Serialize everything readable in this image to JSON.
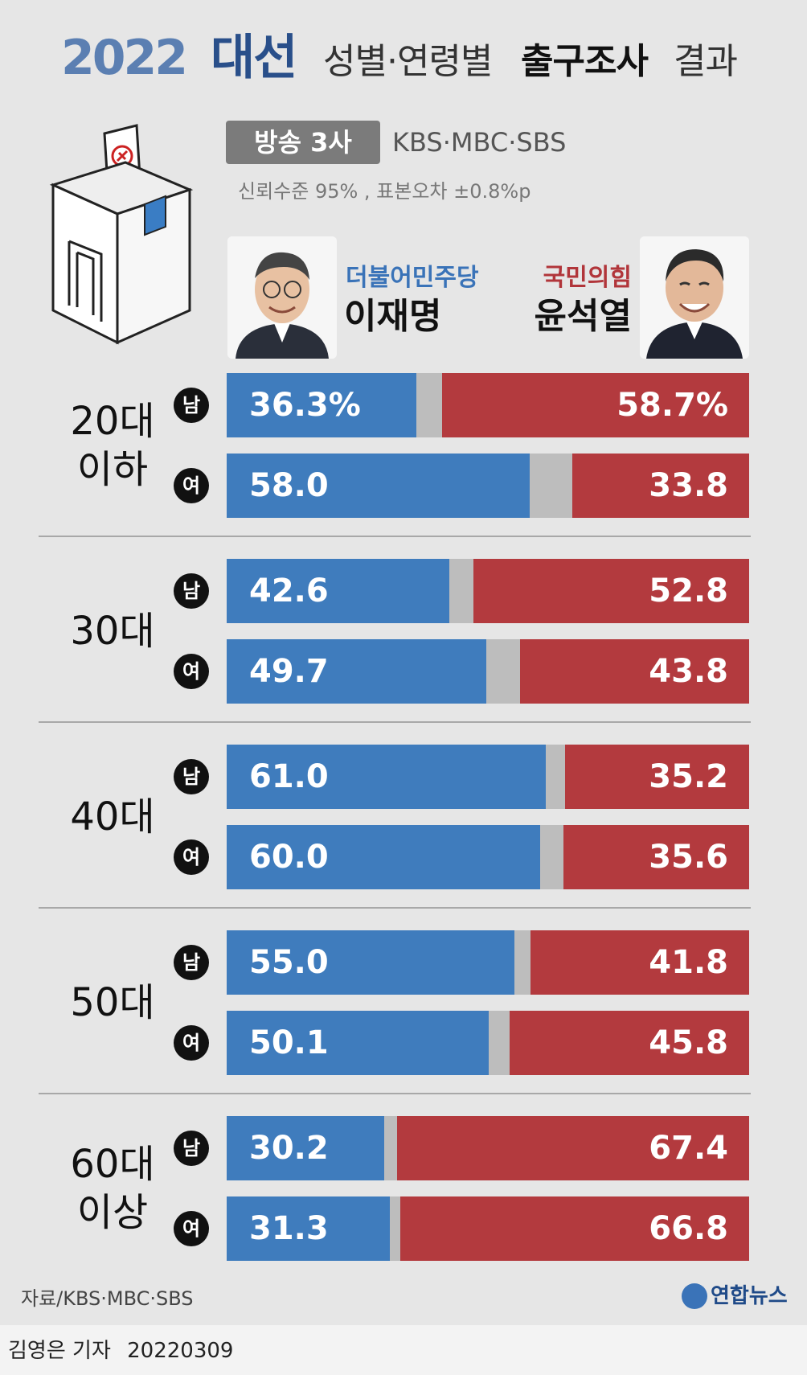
{
  "header": {
    "title_year": "2022",
    "title_election": "대선",
    "title_sub": "성별·연령별",
    "title_bold": "출구조사",
    "title_tail": "결과",
    "broadcast_badge": "방송 3사",
    "broadcasters": "KBS·MBC·SBS",
    "confidence": "신뢰수준 95% , 표본오차 ±0.8%p"
  },
  "candidates": {
    "lee": {
      "party": "더불어민주당",
      "name": "이재명",
      "color": "#3f7cbd"
    },
    "yoon": {
      "party": "국민의힘",
      "name": "윤석열",
      "color": "#b33a3e"
    }
  },
  "chart_data": {
    "type": "bar",
    "orientation": "horizontal-stacked",
    "unit": "%",
    "groups": [
      {
        "age": [
          "20대",
          "이하"
        ],
        "rows": [
          {
            "sex": "남",
            "lee": 36.3,
            "yoon": 58.7,
            "lee_label": "36.3%",
            "yoon_label": "58.7%"
          },
          {
            "sex": "여",
            "lee": 58.0,
            "yoon": 33.8,
            "lee_label": "58.0",
            "yoon_label": "33.8"
          }
        ]
      },
      {
        "age": [
          "30대"
        ],
        "rows": [
          {
            "sex": "남",
            "lee": 42.6,
            "yoon": 52.8,
            "lee_label": "42.6",
            "yoon_label": "52.8"
          },
          {
            "sex": "여",
            "lee": 49.7,
            "yoon": 43.8,
            "lee_label": "49.7",
            "yoon_label": "43.8"
          }
        ]
      },
      {
        "age": [
          "40대"
        ],
        "rows": [
          {
            "sex": "남",
            "lee": 61.0,
            "yoon": 35.2,
            "lee_label": "61.0",
            "yoon_label": "35.2"
          },
          {
            "sex": "여",
            "lee": 60.0,
            "yoon": 35.6,
            "lee_label": "60.0",
            "yoon_label": "35.6"
          }
        ]
      },
      {
        "age": [
          "50대"
        ],
        "rows": [
          {
            "sex": "남",
            "lee": 55.0,
            "yoon": 41.8,
            "lee_label": "55.0",
            "yoon_label": "41.8"
          },
          {
            "sex": "여",
            "lee": 50.1,
            "yoon": 45.8,
            "lee_label": "50.1",
            "yoon_label": "45.8"
          }
        ]
      },
      {
        "age": [
          "60대",
          "이상"
        ],
        "rows": [
          {
            "sex": "남",
            "lee": 30.2,
            "yoon": 67.4,
            "lee_label": "30.2",
            "yoon_label": "67.4"
          },
          {
            "sex": "여",
            "lee": 31.3,
            "yoon": 66.8,
            "lee_label": "31.3",
            "yoon_label": "66.8"
          }
        ]
      }
    ],
    "colors": {
      "lee": "#3f7cbd",
      "other": "#bdbdbd",
      "yoon": "#b33a3e"
    }
  },
  "footer": {
    "source": "자료/KBS·MBC·SBS",
    "logo": "연합뉴스",
    "reporter": "김영은 기자",
    "date": "20220309"
  }
}
